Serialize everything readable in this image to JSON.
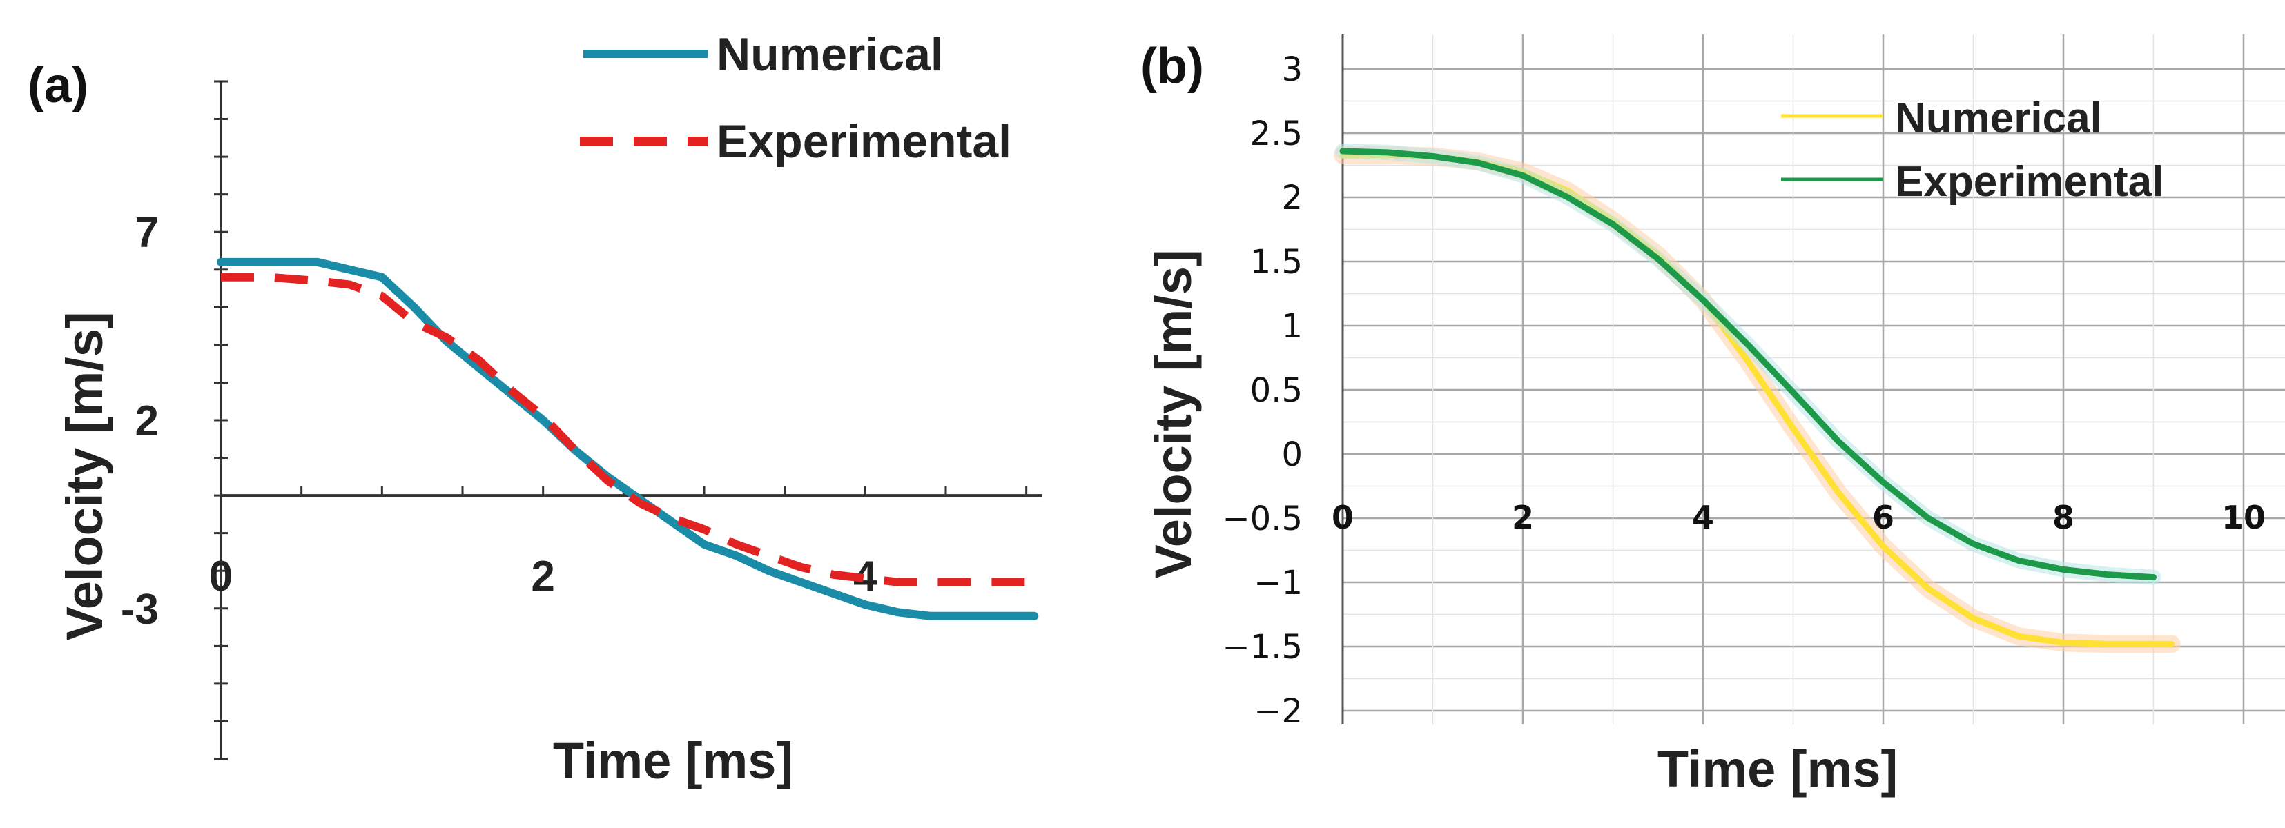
{
  "colors": {
    "a_numerical": "#1a8ca8",
    "a_experimental": "#e32222",
    "b_numerical": "#ffe135",
    "b_experimental": "#1c9a4a",
    "grid_major": "#a8a8a8",
    "grid_minor": "#e2e2e2",
    "axis": "#333333"
  },
  "chart_data": [
    {
      "panel_label": "(a)",
      "type": "line",
      "xlabel": "Time [ms]",
      "ylabel": "Velocity [m/s]",
      "xlim": [
        0,
        5.1
      ],
      "ylim": [
        -7,
        11
      ],
      "xticks": [
        "0",
        "2",
        "4"
      ],
      "yticks": [
        "7",
        "2",
        "-3"
      ],
      "legend": [
        "Numerical",
        "Experimental"
      ],
      "legend_position": "top",
      "grid": false,
      "series": [
        {
          "name": "Numerical",
          "style": "solid",
          "x": [
            0,
            0.3,
            0.6,
            0.8,
            1.0,
            1.2,
            1.4,
            1.6,
            1.8,
            2.0,
            2.2,
            2.4,
            2.6,
            2.8,
            3.0,
            3.2,
            3.4,
            3.6,
            3.8,
            4.0,
            4.2,
            4.4,
            4.6,
            4.8,
            5.05
          ],
          "y": [
            6.2,
            6.2,
            6.2,
            6.0,
            5.8,
            5.0,
            4.1,
            3.4,
            2.7,
            2.0,
            1.2,
            0.5,
            -0.1,
            -0.7,
            -1.3,
            -1.6,
            -2.0,
            -2.3,
            -2.6,
            -2.9,
            -3.1,
            -3.2,
            -3.2,
            -3.2,
            -3.2
          ]
        },
        {
          "name": "Experimental",
          "style": "dashed",
          "x": [
            0,
            0.3,
            0.6,
            0.8,
            1.0,
            1.2,
            1.4,
            1.6,
            1.8,
            2.0,
            2.2,
            2.4,
            2.6,
            2.8,
            3.0,
            3.2,
            3.4,
            3.6,
            3.8,
            4.0,
            4.2,
            4.4,
            4.6,
            4.8,
            5.05
          ],
          "y": [
            5.8,
            5.8,
            5.7,
            5.6,
            5.3,
            4.6,
            4.2,
            3.6,
            2.8,
            2.1,
            1.2,
            0.4,
            -0.2,
            -0.6,
            -0.9,
            -1.3,
            -1.6,
            -1.9,
            -2.1,
            -2.2,
            -2.3,
            -2.3,
            -2.3,
            -2.3,
            -2.3
          ]
        }
      ]
    },
    {
      "panel_label": "(b)",
      "type": "line",
      "xlabel": "Time [ms]",
      "ylabel": "Velocity [m/s]",
      "xlim": [
        0,
        10
      ],
      "ylim": [
        -2,
        3
      ],
      "xticks": [
        "0",
        "2",
        "4",
        "6",
        "8",
        "10"
      ],
      "yticks": [
        "3",
        "2.5",
        "2",
        "1.5",
        "1",
        "0.5",
        "0",
        "−0.5",
        "−1",
        "−1.5",
        "−2"
      ],
      "ytick_values": [
        3,
        2.5,
        2,
        1.5,
        1,
        0.5,
        0,
        -0.5,
        -1,
        -1.5,
        -2
      ],
      "legend": [
        "Numerical",
        "Experimental"
      ],
      "legend_position": "top-right",
      "grid": true,
      "series": [
        {
          "name": "Numerical",
          "style": "solid",
          "x": [
            0,
            0.5,
            1,
            1.5,
            2,
            2.5,
            3,
            3.5,
            4,
            4.5,
            5,
            5.5,
            6,
            6.5,
            7,
            7.5,
            8,
            8.5,
            9,
            9.2
          ],
          "y": [
            2.33,
            2.33,
            2.32,
            2.28,
            2.2,
            2.05,
            1.82,
            1.55,
            1.2,
            0.72,
            0.2,
            -0.3,
            -0.72,
            -1.05,
            -1.28,
            -1.42,
            -1.47,
            -1.48,
            -1.48,
            -1.48
          ]
        },
        {
          "name": "Experimental",
          "style": "solid",
          "x": [
            0,
            0.5,
            1,
            1.5,
            2,
            2.5,
            3,
            3.5,
            4,
            4.5,
            5,
            5.5,
            6,
            6.5,
            7,
            7.5,
            8,
            8.5,
            9
          ],
          "y": [
            2.36,
            2.35,
            2.32,
            2.27,
            2.17,
            2.0,
            1.79,
            1.52,
            1.2,
            0.85,
            0.48,
            0.1,
            -0.22,
            -0.5,
            -0.7,
            -0.83,
            -0.9,
            -0.94,
            -0.96
          ]
        }
      ]
    }
  ]
}
